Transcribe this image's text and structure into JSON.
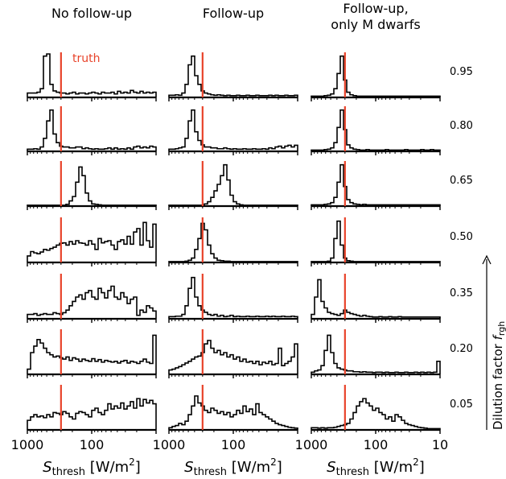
{
  "chart_data": {
    "type": "step-histogram",
    "column_titles": [
      [
        "No follow-up"
      ],
      [
        "Follow-up"
      ],
      [
        "Follow-up,",
        "only M dwarfs"
      ]
    ],
    "row_labels": [
      "0.95",
      "0.80",
      "0.65",
      "0.50",
      "0.35",
      "0.20",
      "0.05"
    ],
    "xlabel": {
      "main": "S",
      "sub": "thresh",
      "unit_open": " [W/m",
      "sup": "2",
      "unit_close": "]"
    },
    "ylabel": {
      "main": "Dilution factor ",
      "italic": "f",
      "sub": "rgh"
    },
    "x_axis": {
      "scale": "log",
      "reversed": true,
      "xlim": [
        1000,
        10
      ],
      "ticks": [
        1000,
        100,
        10
      ],
      "tick_labels": [
        "1000",
        "100",
        "10"
      ]
    },
    "truth": {
      "label": "truth",
      "value": 300,
      "color": "#e8432a"
    },
    "n_bins": 40,
    "hist_ymax": 1.0,
    "panels": [
      [
        [
          0.1,
          0.1,
          0.1,
          0.12,
          0.2,
          0.95,
          1.0,
          0.3,
          0.15,
          0.12,
          0.1,
          0.1,
          0.08,
          0.1,
          0.12,
          0.08,
          0.1,
          0.1,
          0.08,
          0.1,
          0.12,
          0.1,
          0.08,
          0.12,
          0.1,
          0.1,
          0.12,
          0.08,
          0.14,
          0.1,
          0.12,
          0.1,
          0.16,
          0.12,
          0.1,
          0.14,
          0.1,
          0.12,
          0.1,
          0.12
        ],
        [
          0.05,
          0.05,
          0.06,
          0.05,
          0.1,
          0.3,
          0.7,
          0.95,
          0.4,
          0.2,
          0.12,
          0.1,
          0.1,
          0.08,
          0.08,
          0.1,
          0.1,
          0.06,
          0.08,
          0.06,
          0.05,
          0.06,
          0.05,
          0.05,
          0.06,
          0.08,
          0.05,
          0.08,
          0.05,
          0.06,
          0.05,
          0.08,
          0.05,
          0.1,
          0.12,
          0.08,
          0.1,
          0.08,
          0.12,
          0.1
        ],
        [
          0.02,
          0.02,
          0.02,
          0.02,
          0.02,
          0.02,
          0.02,
          0.02,
          0.02,
          0.02,
          0.02,
          0.02,
          0.04,
          0.12,
          0.22,
          0.55,
          0.9,
          0.7,
          0.3,
          0.12,
          0.05,
          0.04,
          0.03,
          0.02,
          0.02,
          0.02,
          0.02,
          0.02,
          0.02,
          0.02,
          0.02,
          0.02,
          0.02,
          0.02,
          0.02,
          0.02,
          0.02,
          0.02,
          0.02,
          0.02
        ],
        [
          0.15,
          0.25,
          0.22,
          0.2,
          0.24,
          0.3,
          0.28,
          0.32,
          0.35,
          0.4,
          0.44,
          0.45,
          0.4,
          0.48,
          0.42,
          0.5,
          0.45,
          0.44,
          0.4,
          0.5,
          0.42,
          0.3,
          0.55,
          0.45,
          0.48,
          0.5,
          0.4,
          0.3,
          0.48,
          0.52,
          0.42,
          0.6,
          0.42,
          0.7,
          0.78,
          0.4,
          0.92,
          0.5,
          0.35,
          0.88
        ],
        [
          0.1,
          0.1,
          0.12,
          0.08,
          0.1,
          0.12,
          0.1,
          0.1,
          0.14,
          0.12,
          0.1,
          0.14,
          0.2,
          0.3,
          0.4,
          0.5,
          0.55,
          0.45,
          0.6,
          0.65,
          0.5,
          0.45,
          0.7,
          0.6,
          0.48,
          0.65,
          0.75,
          0.5,
          0.45,
          0.6,
          0.5,
          0.35,
          0.45,
          0.5,
          0.08,
          0.2,
          0.15,
          0.3,
          0.25,
          0.18
        ],
        [
          0.12,
          0.5,
          0.65,
          0.8,
          0.72,
          0.6,
          0.5,
          0.45,
          0.4,
          0.42,
          0.38,
          0.35,
          0.4,
          0.32,
          0.38,
          0.35,
          0.3,
          0.35,
          0.32,
          0.3,
          0.36,
          0.3,
          0.34,
          0.28,
          0.32,
          0.3,
          0.28,
          0.3,
          0.26,
          0.3,
          0.32,
          0.26,
          0.3,
          0.28,
          0.25,
          0.3,
          0.35,
          0.28,
          0.25,
          0.9
        ],
        [
          0.22,
          0.3,
          0.35,
          0.3,
          0.32,
          0.28,
          0.35,
          0.3,
          0.4,
          0.38,
          0.35,
          0.42,
          0.38,
          0.3,
          0.25,
          0.38,
          0.42,
          0.4,
          0.35,
          0.3,
          0.45,
          0.5,
          0.4,
          0.35,
          0.45,
          0.6,
          0.48,
          0.55,
          0.5,
          0.62,
          0.48,
          0.55,
          0.65,
          0.5,
          0.72,
          0.55,
          0.7,
          0.62,
          0.68,
          0.6
        ]
      ],
      [
        [
          0.05,
          0.05,
          0.06,
          0.05,
          0.1,
          0.3,
          0.75,
          0.95,
          0.5,
          0.3,
          0.15,
          0.1,
          0.08,
          0.06,
          0.05,
          0.06,
          0.05,
          0.04,
          0.05,
          0.04,
          0.04,
          0.05,
          0.04,
          0.04,
          0.05,
          0.04,
          0.04,
          0.05,
          0.04,
          0.04,
          0.04,
          0.05,
          0.04,
          0.05,
          0.04,
          0.04,
          0.05,
          0.04,
          0.04,
          0.05
        ],
        [
          0.05,
          0.05,
          0.06,
          0.08,
          0.1,
          0.3,
          0.7,
          0.95,
          0.45,
          0.25,
          0.15,
          0.1,
          0.1,
          0.08,
          0.08,
          0.06,
          0.06,
          0.08,
          0.06,
          0.05,
          0.06,
          0.05,
          0.05,
          0.06,
          0.05,
          0.05,
          0.06,
          0.05,
          0.05,
          0.06,
          0.05,
          0.08,
          0.06,
          0.1,
          0.12,
          0.08,
          0.12,
          0.14,
          0.1,
          0.14
        ],
        [
          0.02,
          0.02,
          0.02,
          0.02,
          0.02,
          0.02,
          0.02,
          0.02,
          0.02,
          0.02,
          0.02,
          0.05,
          0.1,
          0.2,
          0.35,
          0.5,
          0.7,
          0.95,
          0.6,
          0.25,
          0.1,
          0.05,
          0.03,
          0.02,
          0.02,
          0.02,
          0.02,
          0.02,
          0.02,
          0.02,
          0.02,
          0.02,
          0.02,
          0.02,
          0.02,
          0.02,
          0.02,
          0.02,
          0.02,
          0.02
        ],
        [
          0.02,
          0.02,
          0.02,
          0.02,
          0.02,
          0.03,
          0.05,
          0.1,
          0.3,
          0.55,
          0.9,
          0.75,
          0.4,
          0.2,
          0.1,
          0.05,
          0.04,
          0.03,
          0.03,
          0.02,
          0.02,
          0.02,
          0.02,
          0.02,
          0.02,
          0.02,
          0.02,
          0.02,
          0.02,
          0.02,
          0.02,
          0.02,
          0.02,
          0.02,
          0.02,
          0.02,
          0.02,
          0.02,
          0.02,
          0.02
        ],
        [
          0.05,
          0.05,
          0.06,
          0.06,
          0.1,
          0.3,
          0.7,
          0.95,
          0.5,
          0.3,
          0.2,
          0.15,
          0.1,
          0.08,
          0.1,
          0.06,
          0.08,
          0.05,
          0.06,
          0.08,
          0.05,
          0.06,
          0.05,
          0.05,
          0.06,
          0.05,
          0.05,
          0.06,
          0.05,
          0.05,
          0.06,
          0.05,
          0.06,
          0.05,
          0.05,
          0.06,
          0.05,
          0.05,
          0.06,
          0.05
        ],
        [
          0.1,
          0.12,
          0.15,
          0.18,
          0.22,
          0.26,
          0.3,
          0.35,
          0.4,
          0.42,
          0.5,
          0.7,
          0.78,
          0.6,
          0.5,
          0.55,
          0.45,
          0.5,
          0.4,
          0.45,
          0.35,
          0.4,
          0.3,
          0.35,
          0.28,
          0.3,
          0.25,
          0.3,
          0.22,
          0.28,
          0.25,
          0.3,
          0.22,
          0.25,
          0.6,
          0.2,
          0.25,
          0.3,
          0.4,
          0.7
        ],
        [
          0.05,
          0.08,
          0.1,
          0.15,
          0.12,
          0.2,
          0.35,
          0.55,
          0.78,
          0.62,
          0.55,
          0.45,
          0.4,
          0.5,
          0.45,
          0.38,
          0.42,
          0.35,
          0.4,
          0.3,
          0.35,
          0.45,
          0.38,
          0.55,
          0.42,
          0.48,
          0.35,
          0.6,
          0.4,
          0.35,
          0.3,
          0.25,
          0.2,
          0.15,
          0.12,
          0.1,
          0.08,
          0.06,
          0.05,
          0.04
        ]
      ],
      [
        [
          0.03,
          0.03,
          0.03,
          0.03,
          0.04,
          0.05,
          0.08,
          0.2,
          0.55,
          0.95,
          0.4,
          0.12,
          0.06,
          0.04,
          0.03,
          0.03,
          0.03,
          0.03,
          0.03,
          0.03,
          0.03,
          0.03,
          0.03,
          0.03,
          0.03,
          0.03,
          0.03,
          0.03,
          0.03,
          0.03,
          0.03,
          0.03,
          0.03,
          0.03,
          0.03,
          0.03,
          0.03,
          0.03,
          0.03,
          0.03
        ],
        [
          0.03,
          0.03,
          0.03,
          0.03,
          0.04,
          0.05,
          0.08,
          0.2,
          0.55,
          0.95,
          0.5,
          0.15,
          0.08,
          0.05,
          0.04,
          0.03,
          0.03,
          0.04,
          0.03,
          0.03,
          0.03,
          0.03,
          0.03,
          0.04,
          0.03,
          0.03,
          0.03,
          0.03,
          0.03,
          0.04,
          0.03,
          0.03,
          0.03,
          0.03,
          0.04,
          0.03,
          0.03,
          0.04,
          0.03,
          0.03
        ],
        [
          0.03,
          0.03,
          0.03,
          0.03,
          0.04,
          0.05,
          0.08,
          0.2,
          0.55,
          0.95,
          0.45,
          0.15,
          0.08,
          0.05,
          0.04,
          0.03,
          0.04,
          0.03,
          0.03,
          0.03,
          0.03,
          0.03,
          0.03,
          0.03,
          0.03,
          0.03,
          0.03,
          0.03,
          0.03,
          0.03,
          0.03,
          0.03,
          0.03,
          0.03,
          0.03,
          0.03,
          0.03,
          0.03,
          0.03,
          0.03
        ],
        [
          0.02,
          0.02,
          0.02,
          0.02,
          0.02,
          0.03,
          0.1,
          0.55,
          0.95,
          0.4,
          0.1,
          0.04,
          0.03,
          0.02,
          0.02,
          0.02,
          0.02,
          0.02,
          0.02,
          0.02,
          0.02,
          0.02,
          0.02,
          0.02,
          0.02,
          0.02,
          0.02,
          0.02,
          0.02,
          0.02,
          0.02,
          0.02,
          0.02,
          0.02,
          0.02,
          0.02,
          0.02,
          0.02,
          0.02,
          0.02
        ],
        [
          0.1,
          0.5,
          0.9,
          0.4,
          0.25,
          0.15,
          0.12,
          0.1,
          0.08,
          0.12,
          0.2,
          0.15,
          0.12,
          0.1,
          0.08,
          0.06,
          0.08,
          0.06,
          0.05,
          0.04,
          0.04,
          0.05,
          0.04,
          0.04,
          0.05,
          0.04,
          0.04,
          0.05,
          0.04,
          0.04,
          0.04,
          0.04,
          0.04,
          0.04,
          0.04,
          0.04,
          0.04,
          0.04,
          0.04,
          0.04
        ],
        [
          0.05,
          0.08,
          0.1,
          0.2,
          0.55,
          0.9,
          0.5,
          0.25,
          0.15,
          0.12,
          0.1,
          0.08,
          0.08,
          0.06,
          0.06,
          0.05,
          0.06,
          0.05,
          0.05,
          0.04,
          0.05,
          0.05,
          0.04,
          0.05,
          0.04,
          0.04,
          0.05,
          0.04,
          0.04,
          0.05,
          0.04,
          0.04,
          0.05,
          0.04,
          0.05,
          0.04,
          0.05,
          0.04,
          0.05,
          0.3
        ],
        [
          0.05,
          0.05,
          0.04,
          0.05,
          0.04,
          0.05,
          0.05,
          0.06,
          0.08,
          0.1,
          0.12,
          0.15,
          0.25,
          0.4,
          0.55,
          0.65,
          0.72,
          0.62,
          0.55,
          0.45,
          0.5,
          0.4,
          0.35,
          0.25,
          0.3,
          0.2,
          0.35,
          0.3,
          0.22,
          0.15,
          0.12,
          0.1,
          0.08,
          0.06,
          0.05,
          0.04,
          0.03,
          0.03,
          0.03,
          0.03
        ]
      ]
    ]
  }
}
